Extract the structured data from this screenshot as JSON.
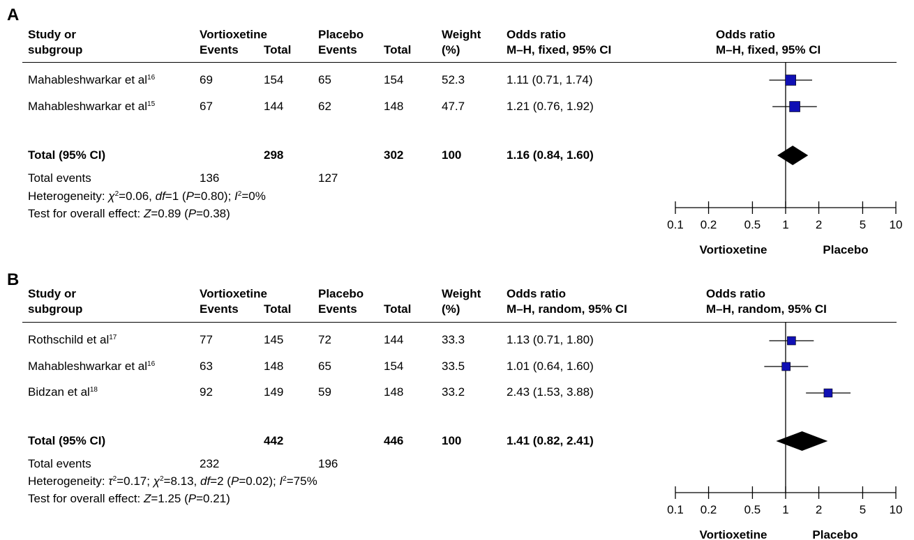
{
  "chart_data": [
    {
      "type": "forest",
      "panel_label": "A",
      "header": {
        "study_l1": "Study or",
        "study_l2": "subgroup",
        "vort": "Vortioxetine",
        "vort_events": "Events",
        "vort_total": "Total",
        "plac": "Placebo",
        "plac_events": "Events",
        "plac_total": "Total",
        "weight_l1": "Weight",
        "weight_l2": "(%)",
        "or_l1": "Odds ratio",
        "or_l2": "M–H, fixed, 95% CI",
        "plot_l1": "Odds ratio",
        "plot_l2": "M–H, fixed, 95% CI"
      },
      "studies": [
        {
          "name": "Mahableshwarkar et al",
          "ref": "16",
          "v_events": "69",
          "v_total": "154",
          "p_events": "65",
          "p_total": "154",
          "weight": "52.3",
          "or_text": "1.11 (0.71, 1.74)",
          "or": 1.11,
          "lo": 0.71,
          "hi": 1.74
        },
        {
          "name": "Mahableshwarkar et al",
          "ref": "15",
          "v_events": "67",
          "v_total": "144",
          "p_events": "62",
          "p_total": "148",
          "weight": "47.7",
          "or_text": "1.21 (0.76, 1.92)",
          "or": 1.21,
          "lo": 0.76,
          "hi": 1.92
        }
      ],
      "total": {
        "label": "Total (95% CI)",
        "v_total": "298",
        "p_total": "302",
        "weight": "100",
        "or_text": "1.16 (0.84, 1.60)",
        "or": 1.16,
        "lo": 0.84,
        "hi": 1.6
      },
      "total_events": {
        "label": "Total events",
        "v": "136",
        "p": "127"
      },
      "heterogeneity_html": "Heterogeneity: <i>χ</i><sup>2</sup>=0.06, <i>df</i>=1 (<i>P</i>=0.80); <i>I</i><sup>2</sup>=0%",
      "overall_html": "Test for overall effect: <i>Z</i>=0.89 (<i>P</i>=0.38)",
      "x_axis": {
        "scale": "log",
        "ticks": [
          0.1,
          0.2,
          0.5,
          1,
          2,
          5,
          10
        ],
        "tick_labels": [
          "0.1",
          "0.2",
          "0.5",
          "1",
          "2",
          "5",
          "10"
        ],
        "left_label": "Vortioxetine",
        "right_label": "Placebo"
      }
    },
    {
      "type": "forest",
      "panel_label": "B",
      "header": {
        "study_l1": "Study or",
        "study_l2": "subgroup",
        "vort": "Vortioxetine",
        "vort_events": "Events",
        "vort_total": "Total",
        "plac": "Placebo",
        "plac_events": "Events",
        "plac_total": "Total",
        "weight_l1": "Weight",
        "weight_l2": "(%)",
        "or_l1": "Odds ratio",
        "or_l2": "M–H, random, 95% CI",
        "plot_l1": "Odds ratio",
        "plot_l2": "M–H, random, 95% CI"
      },
      "studies": [
        {
          "name": "Rothschild et al",
          "ref": "17",
          "v_events": "77",
          "v_total": "145",
          "p_events": "72",
          "p_total": "144",
          "weight": "33.3",
          "or_text": "1.13 (0.71, 1.80)",
          "or": 1.13,
          "lo": 0.71,
          "hi": 1.8
        },
        {
          "name": "Mahableshwarkar et al",
          "ref": "16",
          "v_events": "63",
          "v_total": "148",
          "p_events": "65",
          "p_total": "154",
          "weight": "33.5",
          "or_text": "1.01 (0.64, 1.60)",
          "or": 1.01,
          "lo": 0.64,
          "hi": 1.6
        },
        {
          "name": "Bidzan et al",
          "ref": "18",
          "v_events": "92",
          "v_total": "149",
          "p_events": "59",
          "p_total": "148",
          "weight": "33.2",
          "or_text": "2.43 (1.53, 3.88)",
          "or": 2.43,
          "lo": 1.53,
          "hi": 3.88
        }
      ],
      "total": {
        "label": "Total (95% CI)",
        "v_total": "442",
        "p_total": "446",
        "weight": "100",
        "or_text": "1.41 (0.82, 2.41)",
        "or": 1.41,
        "lo": 0.82,
        "hi": 2.41
      },
      "total_events": {
        "label": "Total events",
        "v": "232",
        "p": "196"
      },
      "heterogeneity_html": "Heterogeneity: <i>τ</i><sup>2</sup>=0.17; <i>χ</i><sup>2</sup>=8.13, <i>df</i>=2 (<i>P</i>=0.02); <i>I</i><sup>2</sup>=75%",
      "overall_html": "Test for overall effect: <i>Z</i>=1.25 (<i>P</i>=0.21)",
      "x_axis": {
        "scale": "log",
        "ticks": [
          0.1,
          0.2,
          0.5,
          1,
          2,
          5,
          10
        ],
        "tick_labels": [
          "0.1",
          "0.2",
          "0.5",
          "1",
          "2",
          "5",
          "10"
        ],
        "left_label": "Vortioxetine",
        "right_label": "Placebo"
      }
    }
  ],
  "colors": {
    "marker": "#1010b4",
    "marker_edge": "#000000",
    "diamond": "#000000",
    "line": "#000000"
  }
}
